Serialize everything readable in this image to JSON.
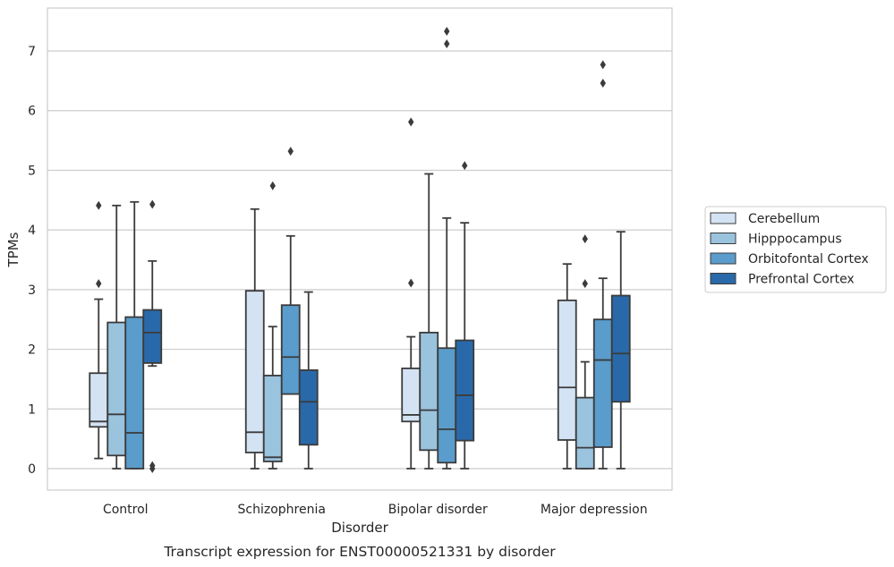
{
  "caption": "Transcript expression for ENST00000521331 by disorder",
  "chart_data": {
    "type": "box",
    "title": "",
    "xlabel": "Disorder",
    "ylabel": "TPMs",
    "ylim": [
      -0.35,
      7.7
    ],
    "yticks": [
      0,
      1,
      2,
      3,
      4,
      5,
      6,
      7
    ],
    "grid": "horizontal",
    "legend_position": "right",
    "categories": [
      "Control",
      "Schizophrenia",
      "Bipolar disorder",
      "Major depression"
    ],
    "series": [
      {
        "name": "Cerebellum",
        "color": "#d4e3f3",
        "boxes": [
          {
            "min": 0.17,
            "q1": 0.7,
            "median": 0.79,
            "q3": 1.6,
            "max": 2.84,
            "outliers": [
              3.1,
              4.41
            ]
          },
          {
            "min": 0.0,
            "q1": 0.27,
            "median": 0.61,
            "q3": 2.98,
            "max": 4.35,
            "outliers": []
          },
          {
            "min": 0.0,
            "q1": 0.79,
            "median": 0.9,
            "q3": 1.68,
            "max": 2.21,
            "outliers": [
              3.11,
              5.81
            ]
          },
          {
            "min": 0.0,
            "q1": 0.48,
            "median": 1.36,
            "q3": 2.82,
            "max": 3.43,
            "outliers": []
          }
        ]
      },
      {
        "name": "Hipppocampus",
        "color": "#9ac3de",
        "boxes": [
          {
            "min": 0.0,
            "q1": 0.22,
            "median": 0.91,
            "q3": 2.45,
            "max": 4.41,
            "outliers": []
          },
          {
            "min": 0.0,
            "q1": 0.12,
            "median": 0.19,
            "q3": 1.56,
            "max": 2.38,
            "outliers": [
              4.74
            ]
          },
          {
            "min": 0.0,
            "q1": 0.31,
            "median": 0.98,
            "q3": 2.28,
            "max": 4.94,
            "outliers": []
          },
          {
            "min": 0.0,
            "q1": 0.0,
            "median": 0.35,
            "q3": 1.19,
            "max": 1.79,
            "outliers": [
              3.1,
              3.85
            ]
          }
        ]
      },
      {
        "name": "Orbitofontal Cortex",
        "color": "#5a9ccb",
        "boxes": [
          {
            "min": 0.0,
            "q1": 0.0,
            "median": 0.6,
            "q3": 2.54,
            "max": 4.47,
            "outliers": []
          },
          {
            "min": 1.25,
            "q1": 1.25,
            "median": 1.87,
            "q3": 2.74,
            "max": 3.9,
            "outliers": [
              5.32
            ]
          },
          {
            "min": 0.0,
            "q1": 0.1,
            "median": 0.66,
            "q3": 2.02,
            "max": 4.2,
            "outliers": [
              7.12,
              7.33
            ]
          },
          {
            "min": 0.0,
            "q1": 0.36,
            "median": 1.82,
            "q3": 2.5,
            "max": 3.19,
            "outliers": [
              6.46,
              6.77
            ]
          }
        ]
      },
      {
        "name": "Prefrontal Cortex",
        "color": "#2a69a9",
        "boxes": [
          {
            "min": 1.72,
            "q1": 1.77,
            "median": 2.28,
            "q3": 2.66,
            "max": 3.48,
            "outliers": [
              4.43,
              0.0,
              0.05
            ]
          },
          {
            "min": 0.0,
            "q1": 0.4,
            "median": 1.12,
            "q3": 1.65,
            "max": 2.96,
            "outliers": []
          },
          {
            "min": 0.0,
            "q1": 0.47,
            "median": 1.23,
            "q3": 2.15,
            "max": 4.12,
            "outliers": [
              5.08
            ]
          },
          {
            "min": 0.0,
            "q1": 1.12,
            "median": 1.93,
            "q3": 2.9,
            "max": 3.97,
            "outliers": []
          }
        ]
      }
    ]
  }
}
